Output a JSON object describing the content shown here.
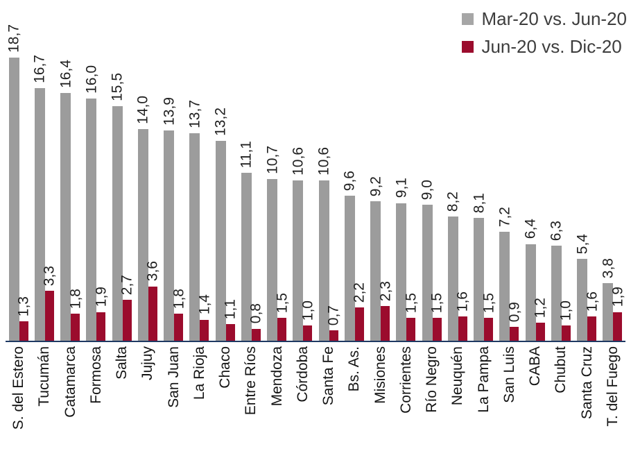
{
  "legend": {
    "items": [
      {
        "label": "Mar-20 vs. Jun-20",
        "color": "#a6a6a6"
      },
      {
        "label": "Jun-20 vs. Dic-20",
        "color": "#9b0c2d"
      }
    ]
  },
  "chart_data": {
    "type": "bar",
    "title": "",
    "xlabel": "",
    "ylabel": "",
    "grid": false,
    "legend_position": "top-right",
    "axis_line_color": "#1f3a63",
    "decimal_separator": ",",
    "ylim": [
      0,
      19
    ],
    "categories": [
      "S. del Estero",
      "Tucumán",
      "Catamarca",
      "Formosa",
      "Salta",
      "Jujuy",
      "San Juan",
      "La Rioja",
      "Chaco",
      "Entre Ríos",
      "Mendoza",
      "Córdoba",
      "Santa Fe",
      "Bs. As.",
      "Misiones",
      "Corrientes",
      "Río Negro",
      "Neuquén",
      "La Pampa",
      "San Luis",
      "CABA",
      "Chubut",
      "Santa Cruz",
      "T. del Fuego"
    ],
    "series": [
      {
        "name": "Mar-20 vs. Jun-20",
        "color": "#9c9c9c",
        "values": [
          18.7,
          16.7,
          16.4,
          16.0,
          15.5,
          14.0,
          13.9,
          13.7,
          13.2,
          11.1,
          10.7,
          10.6,
          10.6,
          9.6,
          9.2,
          9.1,
          9.0,
          8.2,
          8.1,
          7.2,
          6.4,
          6.3,
          5.4,
          3.8
        ]
      },
      {
        "name": "Jun-20 vs. Dic-20",
        "color": "#9b0c2d",
        "values": [
          1.3,
          3.3,
          1.8,
          1.9,
          2.7,
          3.6,
          1.8,
          1.4,
          1.1,
          0.8,
          1.5,
          1.0,
          0.7,
          2.2,
          2.3,
          1.5,
          1.5,
          1.6,
          1.5,
          0.9,
          1.2,
          1.0,
          1.6,
          1.9
        ]
      }
    ]
  }
}
